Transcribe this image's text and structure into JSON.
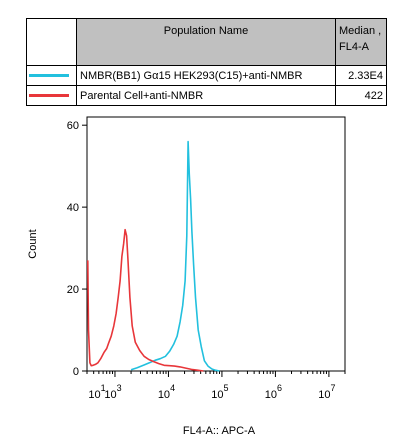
{
  "legend": {
    "header_name": "Population Name",
    "header_median_line1": "Median ,",
    "header_median_line2": "FL4-A",
    "rows": [
      {
        "name": "NMBR(BB1) Gα15 HEK293(C15)+anti-NMBR",
        "median": "2.33E4",
        "color": "#22c0de"
      },
      {
        "name": "Parental Cell+anti-NMBR",
        "median": "422",
        "color": "#e8363a"
      }
    ]
  },
  "chart_data": {
    "type": "area",
    "xlabel": "FL4-A:: APC-A",
    "ylabel": "Count",
    "x_scale": "log",
    "xlim": [
      300,
      20000000
    ],
    "ylim": [
      0,
      62
    ],
    "y_ticks": [
      "0",
      "20",
      "40",
      "60"
    ],
    "x_ticks": [
      {
        "base": "10",
        "exp": "1"
      },
      {
        "base": "10",
        "exp": "2"
      },
      {
        "base": "10",
        "exp": "3"
      },
      {
        "base": "10",
        "exp": "4"
      },
      {
        "base": "10",
        "exp": "5"
      },
      {
        "base": "10",
        "exp": "6"
      },
      {
        "base": "10",
        "exp": "7"
      }
    ],
    "series": [
      {
        "name": "NMBR(BB1) Gα15 HEK293(C15)+anti-NMBR",
        "color": "#22c0de",
        "x": [
          2000,
          2600,
          3400,
          4400,
          5600,
          7000,
          8800,
          10500,
          12500,
          14500,
          16500,
          18500,
          20500,
          22000,
          23300,
          24500,
          26000,
          27500,
          29500,
          32000,
          36000,
          41000,
          47000,
          55000,
          65000,
          75000,
          90000
        ],
        "y": [
          0.3,
          0.8,
          1.4,
          2.0,
          2.6,
          3.0,
          3.6,
          4.8,
          6.5,
          8.5,
          12,
          16,
          22,
          33,
          56,
          48,
          42,
          34,
          26,
          18,
          10,
          6,
          2.5,
          1.2,
          0.5,
          0.2,
          0
        ]
      },
      {
        "name": "Parental Cell+anti-NMBR",
        "color": "#e8363a",
        "x": [
          310,
          320,
          340,
          360,
          390,
          430,
          480,
          540,
          620,
          700,
          760,
          850,
          950,
          1050,
          1150,
          1250,
          1350,
          1450,
          1550,
          1650,
          1750,
          1900,
          2100,
          2400,
          2900,
          3500,
          4300,
          5300,
          6600,
          8300,
          10500,
          13000,
          16500,
          21000,
          27000,
          35000,
          45000
        ],
        "y": [
          27,
          10,
          2,
          1.3,
          1.4,
          1.6,
          2,
          3,
          4.5,
          5.5,
          6.8,
          8.5,
          11,
          14,
          18,
          22,
          28,
          31,
          34.5,
          33,
          27,
          18,
          11,
          7,
          5,
          3.6,
          2.8,
          2.3,
          1.8,
          1.4,
          1.3,
          1.2,
          1.0,
          0.7,
          0.4,
          0.2,
          0
        ]
      }
    ],
    "legend_position": "top table",
    "grid": false
  }
}
